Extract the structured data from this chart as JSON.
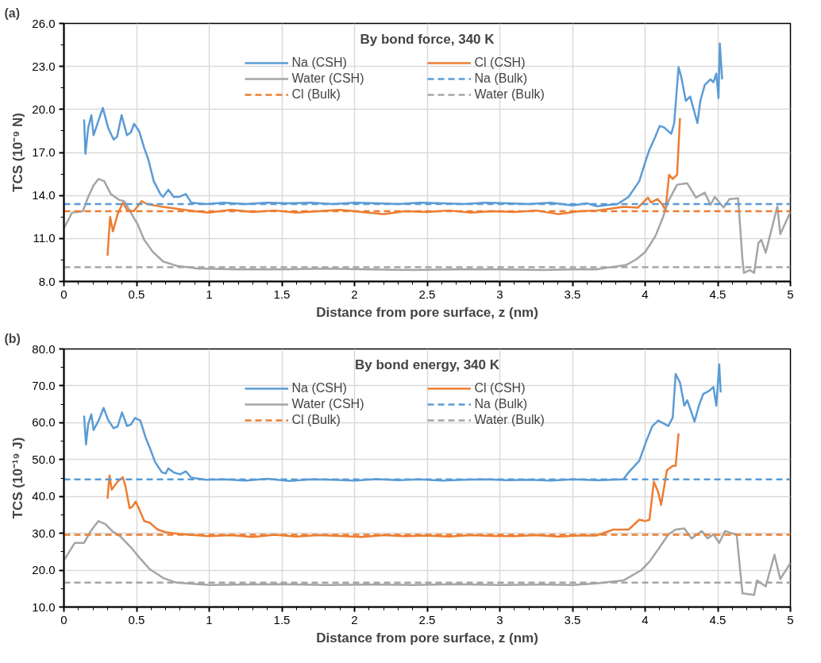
{
  "chart_data": [
    {
      "type": "line",
      "title": "By bond force, 340 K",
      "xlabel": "Distance from pore surface, z (nm)",
      "ylabel": "TCS (10⁻⁹ N)",
      "annotations": [
        "(a)"
      ],
      "xlim": [
        0,
        5
      ],
      "xticks": [
        0,
        0.5,
        1,
        1.5,
        2,
        2.5,
        3,
        3.5,
        4,
        4.5,
        5
      ],
      "ylim": [
        8,
        26
      ],
      "yticks": [
        {
          "value": 8,
          "label": "8.0"
        },
        {
          "value": 11,
          "label": "11.0"
        },
        {
          "value": 14,
          "label": "14.0"
        },
        {
          "value": 17,
          "label": "17.0"
        },
        {
          "value": 20,
          "label": "20.0"
        },
        {
          "value": 23,
          "label": "23.0"
        },
        {
          "value": 26,
          "label": "26.0"
        }
      ],
      "grid": true,
      "legend": "top",
      "series": [
        {
          "name": "Na (CSH)",
          "color": "#5b9bd5",
          "line_style": "solid",
          "x": [
            0.139,
            0.148,
            0.167,
            0.189,
            0.204,
            0.237,
            0.268,
            0.305,
            0.342,
            0.366,
            0.397,
            0.434,
            0.461,
            0.483,
            0.517,
            0.553,
            0.581,
            0.618,
            0.664,
            0.682,
            0.719,
            0.756,
            0.793,
            0.839,
            0.876,
            0.977,
            1.1,
            1.25,
            1.4,
            1.55,
            1.7,
            1.85,
            2.0,
            2.15,
            2.3,
            2.45,
            2.6,
            2.75,
            2.9,
            3.05,
            3.2,
            3.35,
            3.5,
            3.6,
            3.666,
            3.81,
            3.886,
            3.96,
            4.0,
            4.03,
            4.07,
            4.1,
            4.13,
            4.18,
            4.2,
            4.23,
            4.25,
            4.28,
            4.31,
            4.36,
            4.38,
            4.41,
            4.45,
            4.47,
            4.49,
            4.505,
            4.514,
            4.53
          ],
          "values": [
            19.3,
            16.9,
            18.7,
            19.6,
            18.2,
            19.2,
            20.1,
            18.7,
            17.9,
            18.1,
            19.6,
            18.2,
            18.4,
            19.0,
            18.5,
            17.3,
            16.5,
            15.0,
            14.1,
            13.9,
            14.4,
            13.9,
            13.9,
            14.1,
            13.5,
            13.4,
            13.5,
            13.4,
            13.5,
            13.45,
            13.5,
            13.4,
            13.5,
            13.45,
            13.4,
            13.5,
            13.45,
            13.4,
            13.5,
            13.45,
            13.4,
            13.5,
            13.3,
            13.45,
            13.25,
            13.4,
            13.9,
            15.0,
            16.3,
            17.2,
            18.1,
            18.85,
            18.75,
            18.3,
            19.05,
            22.95,
            22.2,
            20.6,
            20.9,
            19.05,
            20.6,
            21.7,
            22.1,
            21.9,
            22.5,
            20.8,
            24.6,
            22.1
          ]
        },
        {
          "name": "Cl (CSH)",
          "color": "#ed7d31",
          "line_style": "solid",
          "x": [
            0.3,
            0.318,
            0.337,
            0.37,
            0.406,
            0.434,
            0.48,
            0.535,
            0.572,
            0.682,
            0.83,
            0.9,
            1.0,
            1.15,
            1.3,
            1.45,
            1.6,
            1.75,
            1.9,
            2.05,
            2.2,
            2.35,
            2.5,
            2.65,
            2.8,
            2.95,
            3.1,
            3.25,
            3.4,
            3.55,
            3.666,
            3.85,
            3.95,
            4.0,
            4.02,
            4.04,
            4.085,
            4.12,
            4.14,
            4.165,
            4.19,
            4.22,
            4.24
          ],
          "values": [
            9.8,
            12.5,
            11.5,
            12.7,
            13.5,
            13.0,
            12.9,
            13.6,
            13.4,
            13.2,
            13.0,
            12.9,
            12.8,
            13.0,
            12.85,
            12.95,
            12.8,
            12.9,
            13.0,
            12.85,
            12.7,
            12.9,
            12.85,
            12.95,
            12.8,
            12.9,
            12.85,
            12.95,
            12.7,
            12.9,
            12.95,
            13.2,
            13.15,
            13.65,
            13.85,
            13.5,
            13.75,
            13.35,
            12.95,
            15.45,
            15.15,
            15.45,
            19.4
          ]
        },
        {
          "name": "Water (CSH)",
          "color": "#a5a5a5",
          "line_style": "solid",
          "x": [
            0.0,
            0.02,
            0.056,
            0.13,
            0.167,
            0.204,
            0.237,
            0.277,
            0.323,
            0.378,
            0.415,
            0.461,
            0.507,
            0.553,
            0.609,
            0.682,
            0.774,
            0.922,
            1.2,
            1.5,
            1.8,
            2.1,
            2.4,
            2.7,
            3.0,
            3.3,
            3.5,
            3.666,
            3.87,
            3.94,
            4.0,
            4.07,
            4.12,
            4.16,
            4.22,
            4.29,
            4.35,
            4.41,
            4.45,
            4.48,
            4.54,
            4.58,
            4.64,
            4.67,
            4.68,
            4.72,
            4.75,
            4.78,
            4.8,
            4.83,
            4.91,
            4.93,
            5.0
          ],
          "values": [
            11.7,
            12.1,
            12.8,
            12.9,
            13.9,
            14.7,
            15.15,
            15.0,
            14.1,
            13.7,
            13.6,
            12.8,
            12.0,
            10.9,
            10.1,
            9.4,
            9.1,
            8.9,
            8.85,
            8.85,
            8.9,
            8.85,
            8.8,
            8.85,
            8.85,
            8.8,
            8.85,
            8.85,
            9.15,
            9.55,
            10.05,
            11.15,
            12.4,
            13.6,
            14.75,
            14.85,
            13.85,
            14.2,
            13.35,
            13.9,
            13.15,
            13.75,
            13.8,
            9.5,
            8.6,
            8.8,
            8.6,
            10.7,
            10.9,
            10.0,
            13.25,
            11.3,
            12.85
          ]
        },
        {
          "name": "Na (Bulk)",
          "color": "#5b9bd5",
          "line_style": "dashed",
          "x": [
            0,
            5
          ],
          "values": [
            13.4,
            13.4
          ]
        },
        {
          "name": "Cl (Bulk)",
          "color": "#ed7d31",
          "line_style": "dashed",
          "x": [
            0,
            5
          ],
          "values": [
            12.9,
            12.9
          ]
        },
        {
          "name": "Water (Bulk)",
          "color": "#a5a5a5",
          "line_style": "dashed",
          "x": [
            0,
            5
          ],
          "values": [
            9.0,
            9.0
          ]
        }
      ]
    },
    {
      "type": "line",
      "title": "By bond energy, 340 K",
      "xlabel": "Distance from pore surface, z (nm)",
      "ylabel": "TCS (10⁻¹⁹ J)",
      "annotations": [
        "(b)"
      ],
      "xlim": [
        0,
        5
      ],
      "xticks": [
        0,
        0.5,
        1,
        1.5,
        2,
        2.5,
        3,
        3.5,
        4,
        4.5,
        5
      ],
      "ylim": [
        10,
        80
      ],
      "yticks": [
        {
          "value": 10,
          "label": "10.0"
        },
        {
          "value": 20,
          "label": "20.0"
        },
        {
          "value": 30,
          "label": "30.0"
        },
        {
          "value": 40,
          "label": "40.0"
        },
        {
          "value": 50,
          "label": "50.0"
        },
        {
          "value": 60,
          "label": "60.0"
        },
        {
          "value": 70,
          "label": "70.0"
        },
        {
          "value": 80,
          "label": "80.0"
        }
      ],
      "grid": true,
      "legend": "top",
      "series": [
        {
          "name": "Na (CSH)",
          "color": "#5b9bd5",
          "line_style": "solid",
          "x": [
            0.139,
            0.152,
            0.167,
            0.189,
            0.204,
            0.24,
            0.273,
            0.305,
            0.342,
            0.37,
            0.4,
            0.434,
            0.461,
            0.489,
            0.526,
            0.562,
            0.59,
            0.627,
            0.673,
            0.7,
            0.719,
            0.756,
            0.8,
            0.839,
            0.876,
            0.977,
            1.1,
            1.25,
            1.4,
            1.55,
            1.7,
            1.85,
            2.0,
            2.15,
            2.3,
            2.45,
            2.6,
            2.75,
            2.9,
            3.05,
            3.2,
            3.35,
            3.5,
            3.666,
            3.85,
            3.886,
            3.96,
            4.01,
            4.05,
            4.09,
            4.16,
            4.19,
            4.21,
            4.24,
            4.27,
            4.29,
            4.34,
            4.37,
            4.4,
            4.44,
            4.47,
            4.49,
            4.51,
            4.52
          ],
          "values": [
            61.9,
            54.1,
            59.6,
            62.3,
            58.0,
            60.7,
            64.0,
            60.7,
            58.5,
            59.0,
            62.8,
            59.1,
            59.5,
            61.3,
            60.6,
            56.0,
            53.3,
            49.4,
            46.6,
            46.2,
            47.6,
            46.5,
            46.0,
            46.8,
            45.1,
            44.5,
            44.6,
            44.3,
            44.8,
            44.2,
            44.6,
            44.5,
            44.3,
            44.7,
            44.4,
            44.6,
            44.3,
            44.5,
            44.6,
            44.4,
            44.5,
            44.3,
            44.6,
            44.4,
            44.6,
            46.5,
            49.7,
            55.2,
            59.1,
            60.6,
            59.1,
            61.4,
            73.2,
            70.9,
            64.6,
            66.1,
            60.3,
            64.6,
            67.8,
            68.6,
            69.7,
            64.6,
            75.8,
            68.2
          ]
        },
        {
          "name": "Cl (CSH)",
          "color": "#ed7d31",
          "line_style": "solid",
          "x": [
            0.3,
            0.314,
            0.329,
            0.366,
            0.406,
            0.424,
            0.452,
            0.47,
            0.494,
            0.517,
            0.553,
            0.59,
            0.645,
            0.7,
            0.793,
            1.0,
            1.15,
            1.3,
            1.45,
            1.6,
            1.75,
            1.9,
            2.05,
            2.2,
            2.35,
            2.5,
            2.65,
            2.8,
            2.95,
            3.1,
            3.25,
            3.4,
            3.55,
            3.666,
            3.78,
            3.886,
            3.96,
            4.0,
            4.03,
            4.06,
            4.09,
            4.11,
            4.15,
            4.19,
            4.21,
            4.23
          ],
          "values": [
            39.4,
            45.7,
            41.8,
            43.9,
            45.2,
            42.7,
            36.8,
            37.2,
            38.6,
            36.6,
            33.3,
            32.9,
            31.0,
            30.3,
            29.8,
            29.2,
            29.5,
            29.0,
            29.6,
            29.1,
            29.5,
            29.3,
            29.0,
            29.5,
            29.2,
            29.4,
            29.1,
            29.5,
            29.3,
            29.2,
            29.5,
            29.1,
            29.4,
            29.4,
            31.0,
            31.0,
            33.7,
            33.3,
            33.7,
            44.0,
            41.2,
            37.7,
            47.1,
            48.3,
            48.3,
            57.1
          ]
        },
        {
          "name": "Water (CSH)",
          "color": "#a5a5a5",
          "line_style": "solid",
          "x": [
            0.0,
            0.02,
            0.075,
            0.139,
            0.185,
            0.237,
            0.286,
            0.332,
            0.387,
            0.461,
            0.526,
            0.59,
            0.682,
            0.774,
            1.0,
            1.2,
            1.5,
            1.8,
            2.1,
            2.4,
            2.7,
            3.0,
            3.3,
            3.5,
            3.666,
            3.85,
            3.97,
            4.03,
            4.1,
            4.16,
            4.21,
            4.27,
            4.32,
            4.39,
            4.43,
            4.47,
            4.51,
            4.55,
            4.63,
            4.67,
            4.75,
            4.77,
            4.83,
            4.89,
            4.93,
            5.0
          ],
          "values": [
            22.7,
            23.9,
            27.4,
            27.4,
            30.6,
            33.3,
            32.5,
            30.6,
            29.2,
            26.2,
            23.1,
            20.3,
            17.9,
            16.6,
            16.0,
            16.1,
            16.2,
            16.0,
            16.1,
            16.0,
            16.2,
            16.0,
            16.1,
            16.0,
            16.4,
            17.2,
            19.9,
            22.3,
            26.2,
            29.7,
            31.0,
            31.3,
            28.6,
            30.6,
            28.6,
            29.7,
            27.4,
            30.6,
            29.6,
            13.7,
            13.3,
            17.2,
            15.6,
            24.2,
            17.6,
            21.9
          ]
        },
        {
          "name": "Na (Bulk)",
          "color": "#5b9bd5",
          "line_style": "dashed",
          "x": [
            0,
            5
          ],
          "values": [
            44.6,
            44.6
          ]
        },
        {
          "name": "Cl (Bulk)",
          "color": "#ed7d31",
          "line_style": "dashed",
          "x": [
            0,
            5
          ],
          "values": [
            29.6,
            29.6
          ]
        },
        {
          "name": "Water (Bulk)",
          "color": "#a5a5a5",
          "line_style": "dashed",
          "x": [
            0,
            5
          ],
          "values": [
            16.6,
            16.6
          ]
        }
      ]
    }
  ]
}
